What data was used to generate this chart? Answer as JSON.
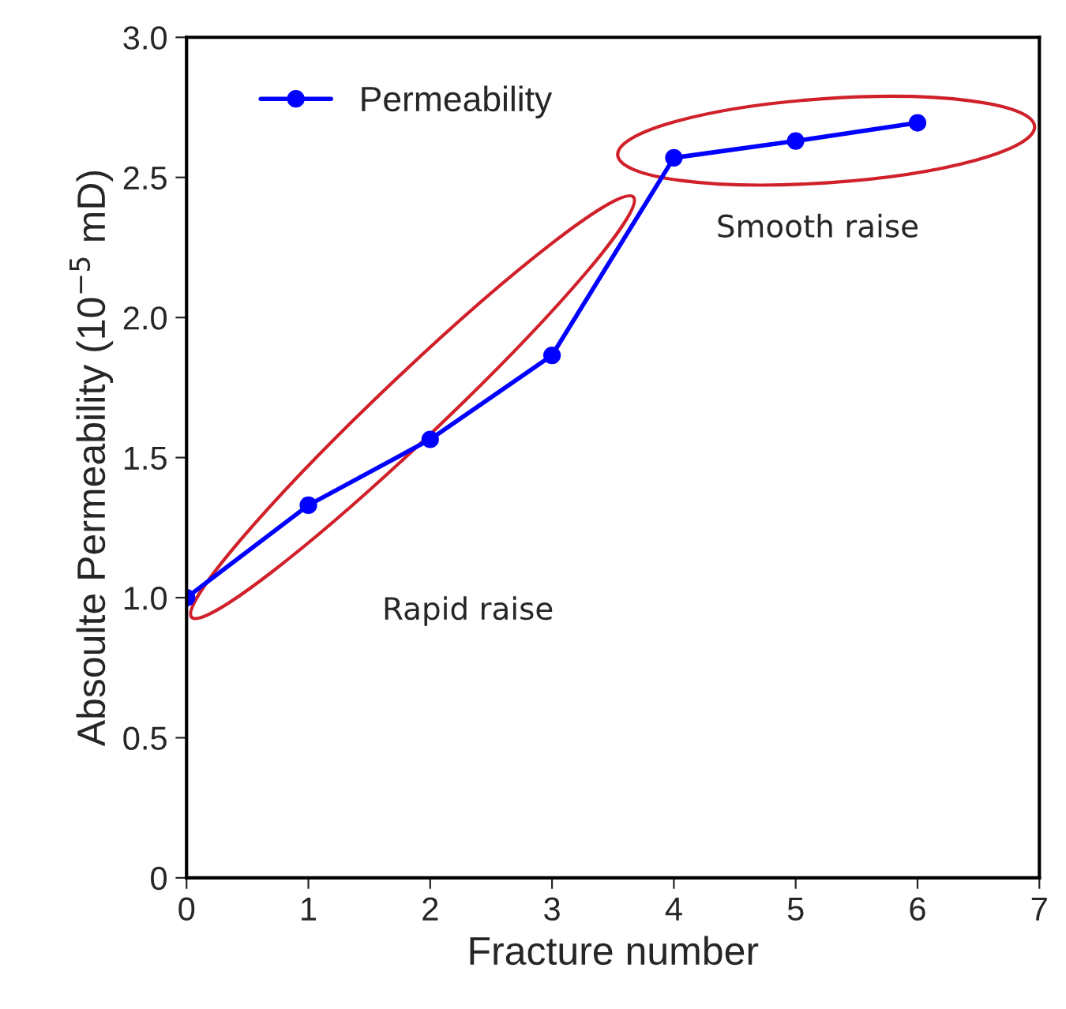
{
  "chart_data": {
    "type": "line",
    "xlabel": "Fracture number",
    "ylabel": "Absoulte Permeability (10$^{−5}$ mD)",
    "x": [
      0,
      1,
      2,
      3,
      4,
      5,
      6
    ],
    "series": [
      {
        "name": "Permeability",
        "color": "#0000ff",
        "values": [
          1.0,
          1.33,
          1.565,
          1.865,
          2.57,
          2.63,
          2.695
        ]
      }
    ],
    "xlim": [
      0,
      7
    ],
    "xticks": [
      0,
      1,
      2,
      3,
      4,
      5,
      6,
      7
    ],
    "ylim": [
      0,
      3
    ],
    "yticks": [
      0,
      {
        "value": 0.5,
        "label": "0.5"
      },
      {
        "value": 1,
        "label": "1.0"
      },
      {
        "value": 1.5,
        "label": "1.5"
      },
      {
        "value": 2,
        "label": "2.0"
      },
      {
        "value": 2.5,
        "label": "2.5"
      },
      {
        "value": 3,
        "label": "3.0"
      }
    ],
    "annotations": [
      "Rapid raise",
      "Smooth raise"
    ],
    "marker": "circle",
    "line_style": "solid",
    "legend": "top left",
    "grid": false
  }
}
